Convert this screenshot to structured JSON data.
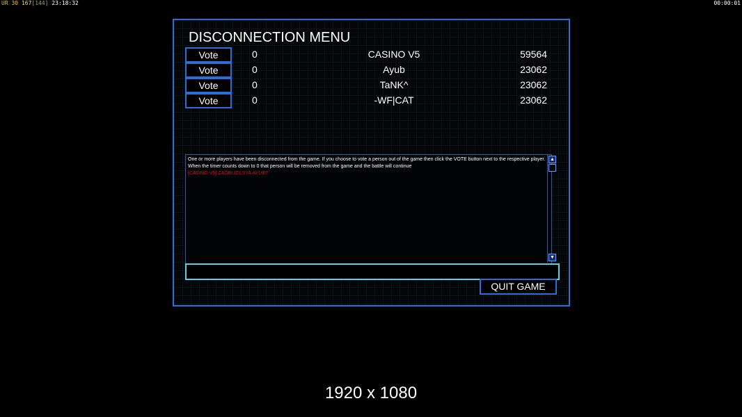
{
  "hud": {
    "mode": "UR",
    "fps": "30",
    "ping": "167",
    "ping_avg": "[144]",
    "clock": "23:18:32",
    "timer": "00:00:01"
  },
  "menu": {
    "title": "DISCONNECTION MENU",
    "vote_label": "Vote",
    "players": [
      {
        "votes": "0",
        "name": "CASINO V5",
        "score": "59564"
      },
      {
        "votes": "0",
        "name": "Ayub",
        "score": "23062"
      },
      {
        "votes": "0",
        "name": "TaNK^",
        "score": "23062"
      },
      {
        "votes": "0",
        "name": "-WF|CAT",
        "score": "23062"
      }
    ],
    "message": "One or more players have been disconnected from the game. If you choose to vote a person out of the game then click the VOTE button next to the respective player. When the timer counts down to 0 that person will be removed from the game and the battle will continue",
    "chat_line": "[CASINO V5] ZAGRUZILSYA AYUB?",
    "chat_input": "",
    "quit_label": "QUIT GAME"
  },
  "resolution": "1920 x 1080"
}
